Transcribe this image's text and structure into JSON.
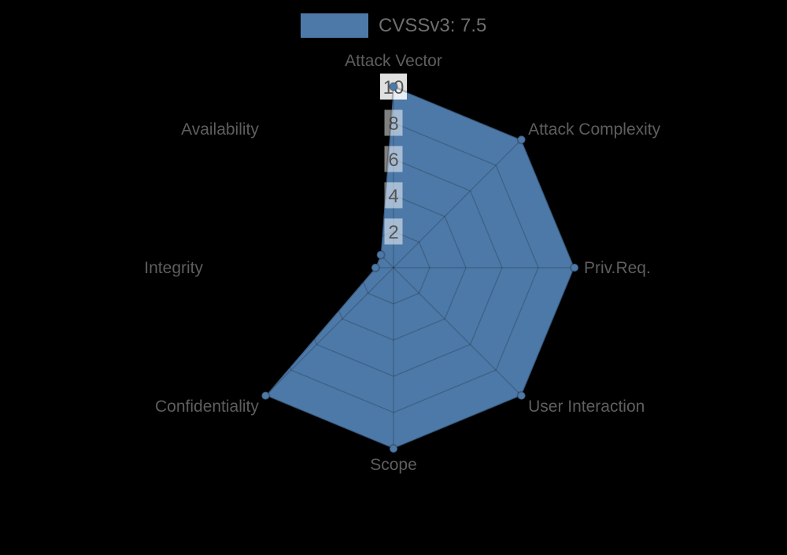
{
  "legend": {
    "label": "CVSSv3: 7.5",
    "swatch_color": "#4d79a8"
  },
  "chart_data": {
    "type": "radar",
    "title": "CVSSv3: 7.5",
    "categories": [
      "Attack Vector",
      "Attack Complexity",
      "Priv.Req.",
      "User Interaction",
      "Scope",
      "Confidentiality",
      "Integrity",
      "Availability"
    ],
    "series": [
      {
        "name": "CVSSv3: 7.5",
        "values": [
          10,
          10,
          10,
          10,
          10,
          10,
          1,
          1
        ],
        "color": "#4d79a8"
      }
    ],
    "ticks": [
      2,
      4,
      6,
      8,
      10
    ],
    "rlim": [
      0,
      10
    ],
    "start_axis": "top",
    "direction": "clockwise",
    "grid": true,
    "legend_position": "top-center",
    "colors": {
      "background": "#000000",
      "fill": "#4d79a8",
      "outline": "rgba(0,0,0,0.22)",
      "grid_line": "rgba(0,0,0,0.18)",
      "axis_label": "#5e5e5e",
      "tick_text": "#555555",
      "tick_box": "#ffffff",
      "legend_text": "#6e6e6e"
    }
  }
}
